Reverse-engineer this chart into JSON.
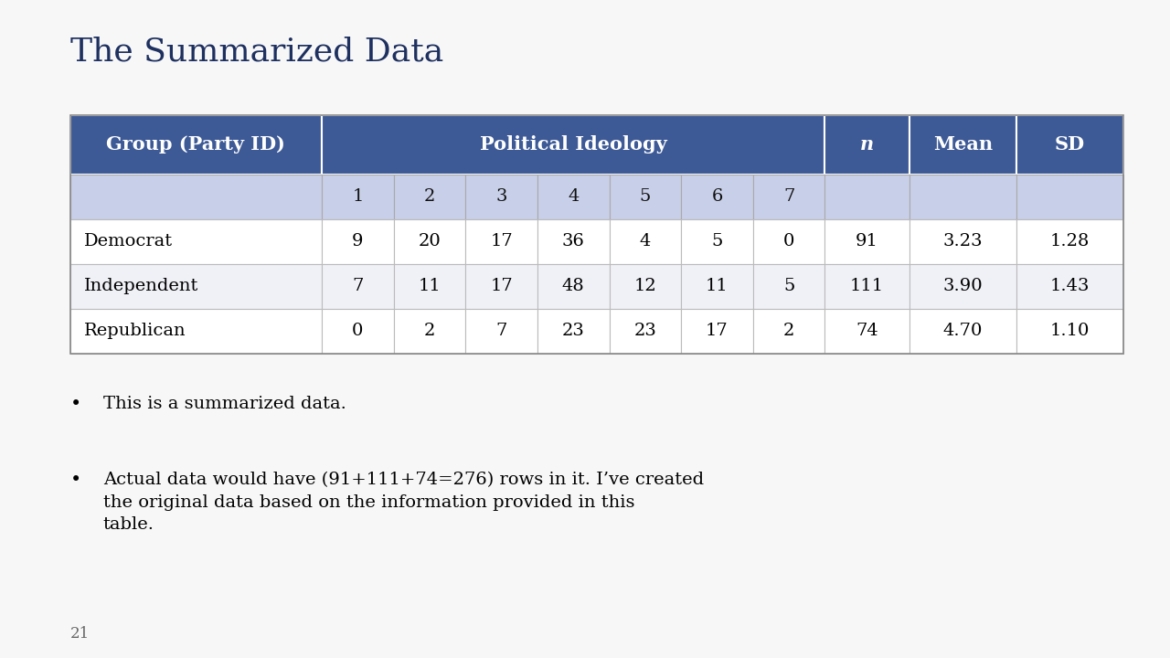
{
  "title": "The Summarized Data",
  "background_color": "#f7f7f7",
  "header_bg": "#3d5a96",
  "header_text_color": "#ffffff",
  "subheader_bg": "#c8cfe8",
  "subheader_text_color": "#1a1a1a",
  "row_bg_odd": "#f0f1f7",
  "row_bg_even": "#ffffff",
  "col_header": "Group (Party ID)",
  "pol_ideology_header": "Political Ideology",
  "ideology_nums": [
    "1",
    "2",
    "3",
    "4",
    "5",
    "6",
    "7"
  ],
  "stats_headers": [
    "n",
    "Mean",
    "SD"
  ],
  "rows": [
    {
      "group": "Democrat",
      "counts": [
        9,
        20,
        17,
        36,
        4,
        5,
        0
      ],
      "n": 91,
      "mean": "3.23",
      "sd": "1.28"
    },
    {
      "group": "Independent",
      "counts": [
        7,
        11,
        17,
        48,
        12,
        11,
        5
      ],
      "n": 111,
      "mean": "3.90",
      "sd": "1.43"
    },
    {
      "group": "Republican",
      "counts": [
        0,
        2,
        7,
        23,
        23,
        17,
        2
      ],
      "n": 74,
      "mean": "4.70",
      "sd": "1.10"
    }
  ],
  "bullets": [
    "This is a summarized data.",
    "Actual data would have (91+111+74=276) rows in it. I’ve created\nthe original data based on the information provided in this\ntable."
  ],
  "page_number": "21",
  "title_color": "#1e3060",
  "title_fontsize": 26,
  "body_fontsize": 14,
  "table_header_fontsize": 15,
  "table_body_fontsize": 14
}
